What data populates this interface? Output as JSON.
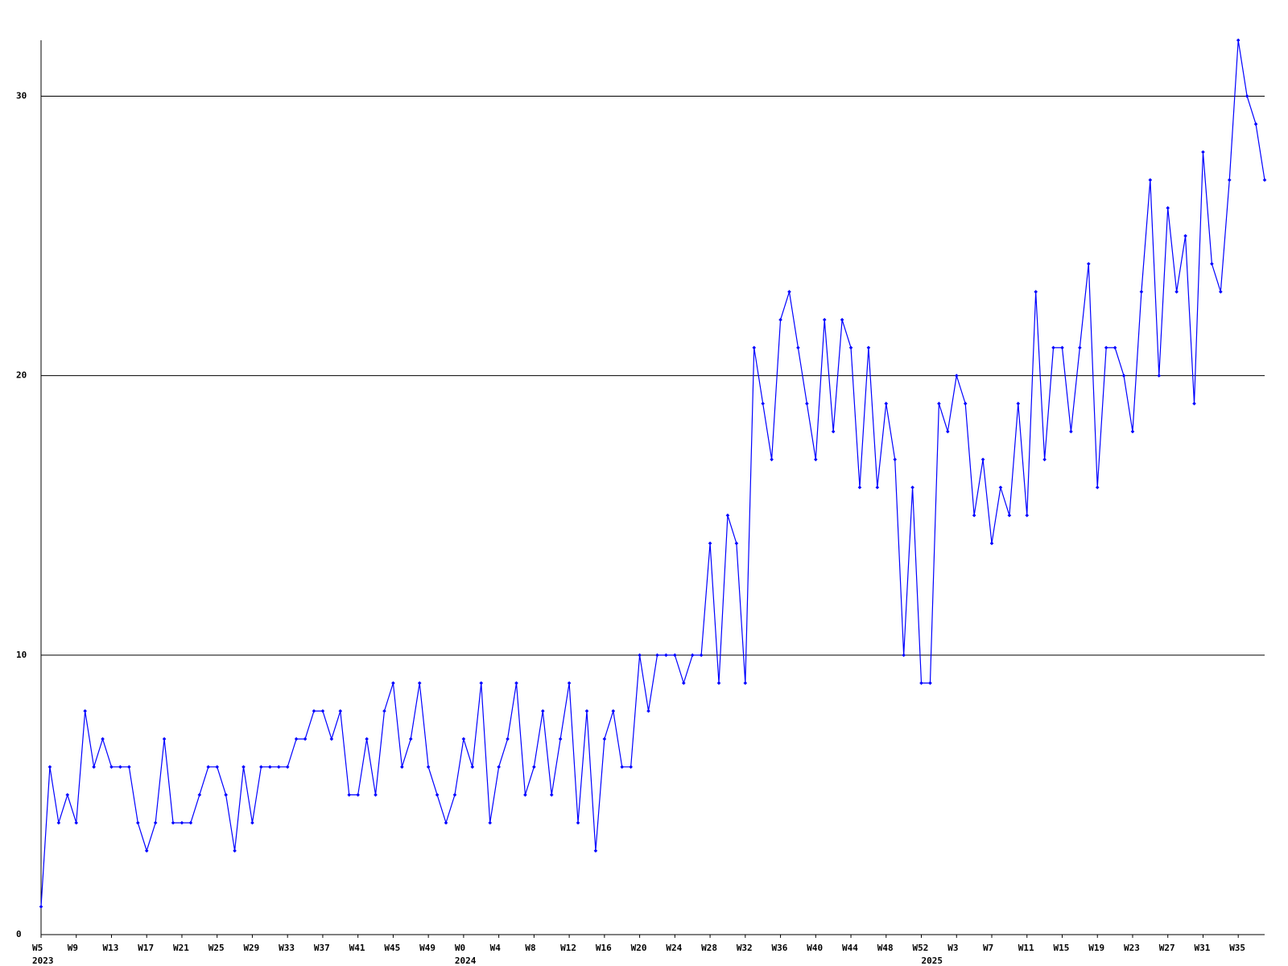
{
  "chart_data": {
    "type": "line",
    "categories": [
      "W5",
      null,
      null,
      null,
      "W9",
      null,
      null,
      null,
      "W13",
      null,
      null,
      null,
      "W17",
      null,
      null,
      null,
      "W21",
      null,
      null,
      null,
      "W25",
      null,
      null,
      null,
      "W29",
      null,
      null,
      null,
      "W33",
      null,
      null,
      null,
      "W37",
      null,
      null,
      null,
      "W41",
      null,
      null,
      null,
      "W45",
      null,
      null,
      null,
      "W49",
      null,
      null,
      null,
      "W0",
      null,
      null,
      null,
      "W4",
      null,
      null,
      null,
      "W8",
      null,
      null,
      null,
      "W12",
      null,
      null,
      null,
      "W16",
      null,
      null,
      null,
      "W20",
      null,
      null,
      null,
      "W24",
      null,
      null,
      null,
      "W28",
      null,
      null,
      null,
      "W32",
      null,
      null,
      null,
      "W36",
      null,
      null,
      null,
      "W40",
      null,
      null,
      null,
      "W44",
      null,
      null,
      null,
      "W48",
      null,
      null,
      null,
      "W52",
      null,
      null,
      null,
      "W3",
      null,
      null,
      null,
      "W7",
      null,
      null,
      null,
      "W11",
      null,
      null,
      null,
      "W15",
      null,
      null,
      null,
      "W19",
      null,
      null,
      null,
      "W23",
      null,
      null,
      null,
      "W27",
      null,
      null,
      null,
      "W31",
      null,
      null,
      null,
      "W35",
      null,
      null,
      null
    ],
    "year_labels": [
      {
        "index": 0,
        "label": "2023"
      },
      {
        "index": 48,
        "label": "2024"
      },
      {
        "index": 101,
        "label": "2025"
      }
    ],
    "series": [
      {
        "color": "#0000ff",
        "values": [
          1,
          6,
          4,
          5,
          4,
          8,
          6,
          7,
          6,
          6,
          6,
          4,
          3,
          4,
          7,
          4,
          4,
          4,
          5,
          6,
          6,
          5,
          3,
          6,
          4,
          6,
          6,
          6,
          6,
          7,
          7,
          8,
          8,
          7,
          8,
          5,
          5,
          7,
          5,
          8,
          9,
          6,
          7,
          9,
          6,
          5,
          4,
          5,
          7,
          6,
          9,
          4,
          6,
          7,
          9,
          5,
          6,
          8,
          5,
          7,
          9,
          4,
          8,
          3,
          7,
          8,
          6,
          6,
          10,
          8,
          10,
          10,
          10,
          9,
          10,
          10,
          14,
          9,
          15,
          14,
          9,
          21,
          19,
          17,
          22,
          23,
          21,
          19,
          17,
          22,
          18,
          22,
          21,
          16,
          21,
          16,
          19,
          17,
          10,
          16,
          9,
          9,
          19,
          18,
          20,
          19,
          15,
          17,
          14,
          16,
          15,
          19,
          15,
          23,
          17,
          21,
          21,
          18,
          21,
          24,
          16,
          21,
          21,
          20,
          18,
          23,
          27,
          20,
          26,
          23,
          25,
          19,
          28,
          24,
          23,
          27,
          32,
          30,
          29,
          27
        ]
      }
    ],
    "ylim": [
      0,
      32
    ],
    "yticks": [
      0,
      10,
      20,
      30
    ],
    "grid": true
  }
}
